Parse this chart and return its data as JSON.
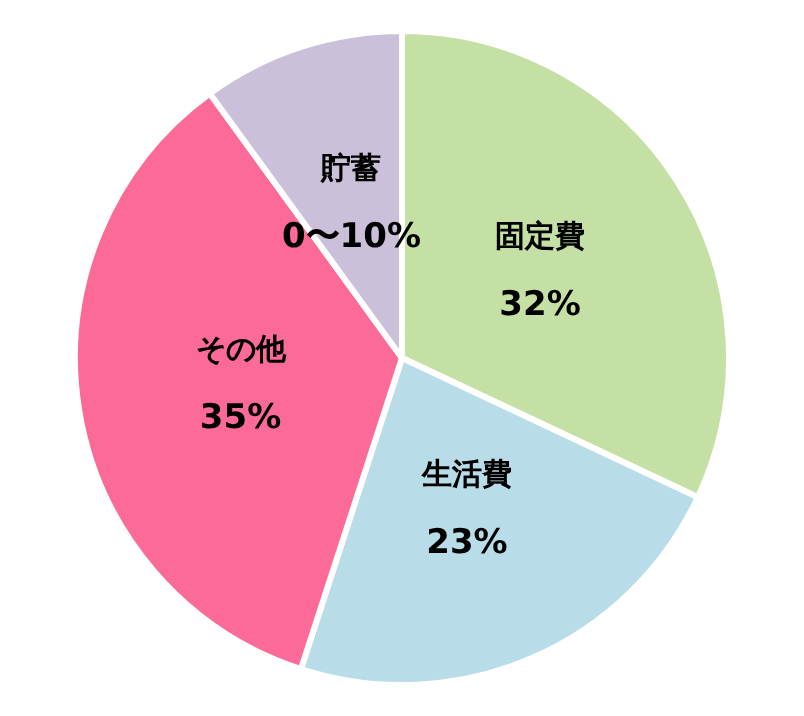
{
  "chart_data": {
    "type": "pie",
    "categories": [
      "固定費",
      "生活費",
      "その他",
      "貯蓄"
    ],
    "values": [
      32,
      23,
      35,
      10
    ],
    "value_labels": [
      "32%",
      "23%",
      "35%",
      "0〜10%"
    ],
    "colors": [
      "#c4e0a4",
      "#b8dde8",
      "#fc6a97",
      "#cbc0da"
    ],
    "legend": false
  }
}
